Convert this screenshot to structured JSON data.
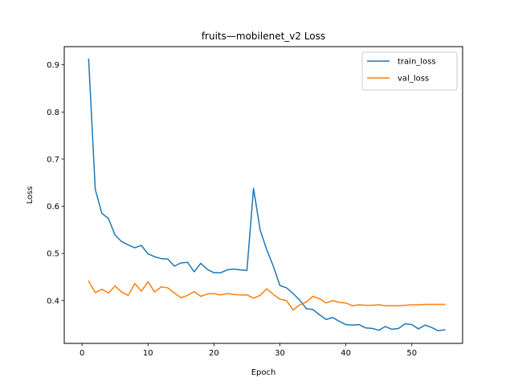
{
  "chart_data": {
    "type": "line",
    "title": "fruits—mobilenet_v2 Loss",
    "xlabel": "Epoch",
    "ylabel": "Loss",
    "xlim": [
      -2.7,
      57.7
    ],
    "ylim": [
      0.3092,
      0.9386
    ],
    "xticks": [
      0,
      10,
      20,
      30,
      40,
      50
    ],
    "yticks": [
      0.4,
      0.5,
      0.6,
      0.7,
      0.8,
      0.9
    ],
    "xtick_labels": [
      "0",
      "10",
      "20",
      "30",
      "40",
      "50"
    ],
    "ytick_labels": [
      "0.4",
      "0.5",
      "0.6",
      "0.7",
      "0.8",
      "0.9"
    ],
    "grid": false,
    "legend_position": "top-right",
    "x": [
      1,
      2,
      3,
      4,
      5,
      6,
      7,
      8,
      9,
      10,
      11,
      12,
      13,
      14,
      15,
      16,
      17,
      18,
      19,
      20,
      21,
      22,
      23,
      24,
      25,
      26,
      27,
      28,
      29,
      30,
      31,
      32,
      33,
      34,
      35,
      36,
      37,
      38,
      39,
      40,
      41,
      42,
      43,
      44,
      45,
      46,
      47,
      48,
      49,
      50,
      51,
      52,
      53,
      54,
      55
    ],
    "series": [
      {
        "name": "train_loss",
        "color": "#1f77b4",
        "values": [
          0.912,
          0.636,
          0.585,
          0.574,
          0.539,
          0.525,
          0.518,
          0.512,
          0.517,
          0.499,
          0.493,
          0.489,
          0.488,
          0.473,
          0.48,
          0.481,
          0.461,
          0.479,
          0.466,
          0.459,
          0.459,
          0.465,
          0.467,
          0.465,
          0.464,
          0.638,
          0.55,
          0.508,
          0.473,
          0.432,
          0.427,
          0.415,
          0.401,
          0.383,
          0.381,
          0.37,
          0.36,
          0.364,
          0.356,
          0.349,
          0.348,
          0.349,
          0.342,
          0.341,
          0.337,
          0.345,
          0.339,
          0.341,
          0.351,
          0.349,
          0.34,
          0.348,
          0.343,
          0.336,
          0.338
        ]
      },
      {
        "name": "val_loss",
        "color": "#ff7f0e",
        "values": [
          0.441,
          0.417,
          0.424,
          0.416,
          0.431,
          0.418,
          0.411,
          0.436,
          0.42,
          0.44,
          0.418,
          0.429,
          0.427,
          0.416,
          0.406,
          0.411,
          0.419,
          0.409,
          0.414,
          0.415,
          0.412,
          0.415,
          0.413,
          0.412,
          0.412,
          0.405,
          0.411,
          0.425,
          0.413,
          0.403,
          0.4,
          0.38,
          0.391,
          0.397,
          0.409,
          0.404,
          0.395,
          0.4,
          0.396,
          0.395,
          0.389,
          0.391,
          0.39,
          0.39,
          0.391,
          0.389,
          0.389,
          0.389,
          0.39,
          0.391,
          0.391,
          0.392,
          0.392,
          0.392,
          0.392
        ]
      }
    ]
  }
}
